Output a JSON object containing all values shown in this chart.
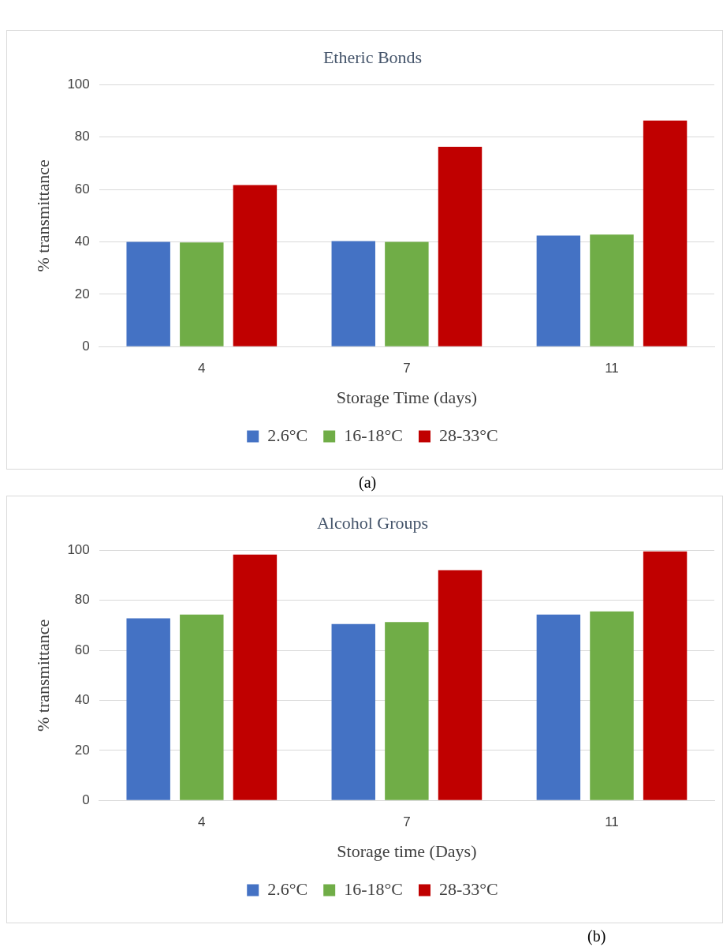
{
  "chart_data": [
    {
      "type": "bar",
      "title": "Etheric Bonds",
      "xlabel": "Storage Time (days)",
      "ylabel": "% transmittance",
      "categories": [
        "4",
        "7",
        "11"
      ],
      "series": [
        {
          "name": "2.6°C",
          "color": "#4472c4",
          "values": [
            40,
            40.3,
            42.4
          ]
        },
        {
          "name": "16-18°C",
          "color": "#70ad47",
          "values": [
            39.8,
            40,
            42.8
          ]
        },
        {
          "name": "28-33°C",
          "color": "#c00000",
          "values": [
            61.7,
            76.3,
            86.3
          ]
        }
      ],
      "ylim": [
        0,
        100
      ],
      "yticks": [
        0,
        20,
        40,
        60,
        80,
        100
      ],
      "grid": "y",
      "legend": "bottom",
      "annotations": [
        "(a)"
      ]
    },
    {
      "type": "bar",
      "title": "Alcohol Groups",
      "xlabel": "Storage time (Days)",
      "ylabel": "% transmittance",
      "categories": [
        "4",
        "7",
        "11"
      ],
      "series": [
        {
          "name": "2.6°C",
          "color": "#4472c4",
          "values": [
            72.8,
            70.5,
            74.3
          ]
        },
        {
          "name": "16-18°C",
          "color": "#70ad47",
          "values": [
            74.3,
            71.3,
            75.6
          ]
        },
        {
          "name": "28-33°C",
          "color": "#c00000",
          "values": [
            98.3,
            92.1,
            99.6
          ]
        }
      ],
      "ylim": [
        0,
        100
      ],
      "yticks": [
        0,
        20,
        40,
        60,
        80,
        100
      ],
      "grid": "y",
      "legend": "bottom",
      "annotations": [
        "(b)"
      ]
    }
  ]
}
